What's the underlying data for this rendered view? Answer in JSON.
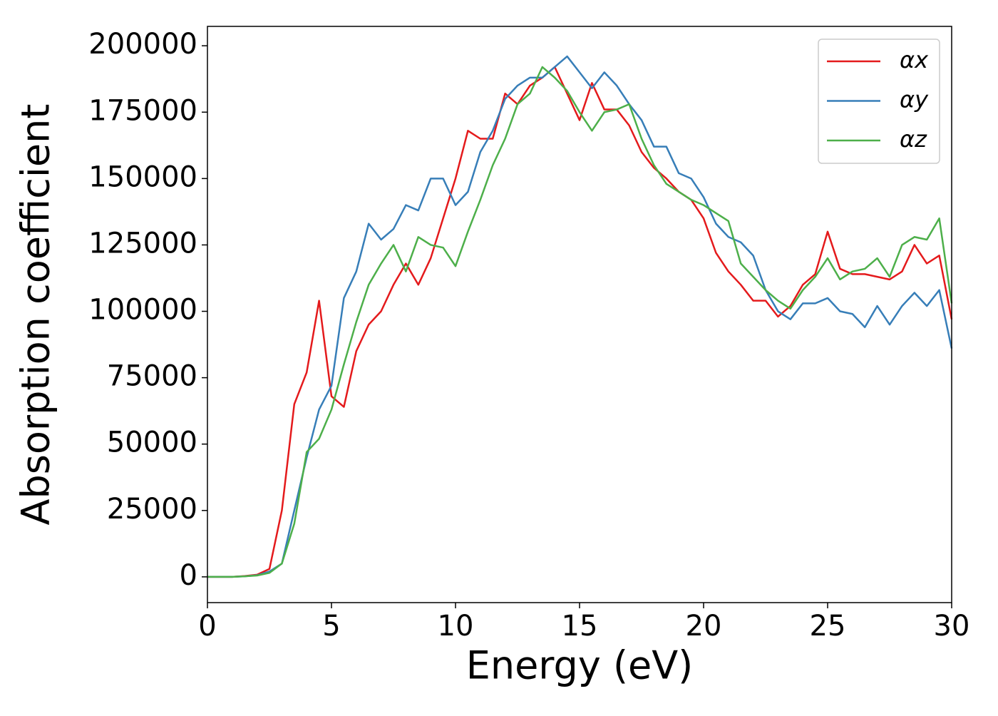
{
  "chart_data": {
    "type": "line",
    "x_label": "Energy (eV)",
    "y_label": "Absorption coefficient",
    "x": [
      0,
      0.5,
      1,
      1.5,
      2,
      2.5,
      3,
      3.5,
      4,
      4.5,
      5,
      5.5,
      6,
      6.5,
      7,
      7.5,
      8,
      8.5,
      9,
      9.5,
      10,
      10.5,
      11,
      11.5,
      12,
      12.5,
      13,
      13.5,
      14,
      14.5,
      15,
      15.5,
      16,
      16.5,
      17,
      17.5,
      18,
      18.5,
      19,
      19.5,
      20,
      20.5,
      21,
      21.5,
      22,
      22.5,
      23,
      23.5,
      24,
      24.5,
      25,
      25.5,
      26,
      26.5,
      27,
      27.5,
      28,
      28.5,
      29,
      29.5,
      30
    ],
    "series": [
      {
        "name": "αx",
        "color": "#e41a1c",
        "values": [
          0,
          0,
          0,
          300,
          800,
          3000,
          25000,
          65000,
          77000,
          104000,
          68000,
          64000,
          85000,
          95000,
          100000,
          110000,
          118000,
          110000,
          120000,
          135000,
          150000,
          168000,
          165000,
          165000,
          182000,
          178000,
          185000,
          188000,
          192000,
          182000,
          172000,
          186000,
          176000,
          176000,
          170000,
          160000,
          154000,
          150000,
          145000,
          142000,
          135000,
          122000,
          115000,
          110000,
          104000,
          104000,
          98000,
          102000,
          110000,
          114000,
          130000,
          116000,
          114000,
          114000,
          113000,
          112000,
          115000,
          125000,
          118000,
          121000,
          97000
        ]
      },
      {
        "name": "αy",
        "color": "#377eb8",
        "values": [
          0,
          0,
          0,
          200,
          600,
          2000,
          5000,
          25000,
          45000,
          63000,
          72000,
          105000,
          115000,
          133000,
          127000,
          131000,
          140000,
          138000,
          150000,
          150000,
          140000,
          145000,
          160000,
          168000,
          180000,
          185000,
          188000,
          188000,
          192000,
          196000,
          190000,
          184000,
          190000,
          185000,
          178000,
          172000,
          162000,
          162000,
          152000,
          150000,
          143000,
          133000,
          128000,
          126000,
          121000,
          108000,
          100000,
          97000,
          103000,
          103000,
          105000,
          100000,
          99000,
          94000,
          102000,
          95000,
          102000,
          107000,
          102000,
          108000,
          86000
        ]
      },
      {
        "name": "αz",
        "color": "#4daf4a",
        "values": [
          0,
          0,
          0,
          200,
          500,
          1500,
          5000,
          20000,
          47000,
          52000,
          63000,
          80000,
          96000,
          110000,
          118000,
          125000,
          115000,
          128000,
          125000,
          124000,
          117000,
          130000,
          142000,
          155000,
          165000,
          178000,
          182000,
          192000,
          188000,
          183000,
          175000,
          168000,
          175000,
          176000,
          178000,
          165000,
          155000,
          148000,
          145000,
          142000,
          140000,
          137000,
          134000,
          118000,
          113000,
          108000,
          104000,
          101000,
          108000,
          113000,
          120000,
          112000,
          115000,
          116000,
          120000,
          113000,
          125000,
          128000,
          127000,
          135000,
          103000
        ]
      }
    ],
    "xlim": [
      0,
      30
    ],
    "xticks": [
      0,
      5,
      10,
      15,
      20,
      25,
      30
    ],
    "ylim": [
      -9700,
      207300
    ],
    "yticks": [
      0,
      25000,
      50000,
      75000,
      100000,
      125000,
      150000,
      175000,
      200000
    ],
    "legend": "upper right",
    "grid": false
  }
}
